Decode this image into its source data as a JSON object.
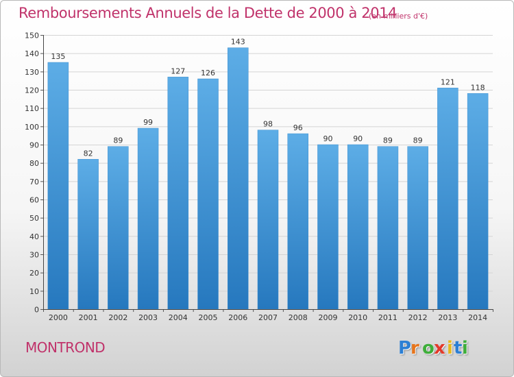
{
  "title": "Remboursements Annuels de la Dette de 2000 à 2014",
  "unit_note": "(en milliers d'€)",
  "commune": "MONTROND",
  "brand": {
    "letters": [
      "P",
      "r",
      "o",
      "x",
      "i",
      "t",
      "i"
    ],
    "colors": [
      "#2c7fd4",
      "#e7751c",
      "#3eae3a",
      "#e33a2a",
      "#e7b81c",
      "#2c7fd4",
      "#3eae3a"
    ]
  },
  "colors": {
    "bar_top": "#5dade6",
    "bar_bottom": "#2678be",
    "text": "#c0326a",
    "grid": "#d4d4d4"
  },
  "chart_data": {
    "type": "bar",
    "categories": [
      "2000",
      "2001",
      "2002",
      "2003",
      "2004",
      "2005",
      "2006",
      "2007",
      "2008",
      "2009",
      "2010",
      "2011",
      "2012",
      "2013",
      "2014"
    ],
    "values": [
      135,
      82,
      89,
      99,
      127,
      126,
      143,
      98,
      96,
      90,
      90,
      89,
      89,
      121,
      118
    ],
    "data_labels": [
      "135",
      "82",
      "89",
      "99",
      "127",
      "126",
      "143",
      "98",
      "96",
      "90",
      "90",
      "89",
      "89",
      "121",
      "118"
    ],
    "yticks": [
      "0",
      "10",
      "20",
      "30",
      "40",
      "50",
      "60",
      "70",
      "80",
      "90",
      "100",
      "110",
      "120",
      "130",
      "140",
      "150"
    ],
    "ylim": [
      0,
      150
    ],
    "grid": true,
    "legend": "none"
  }
}
